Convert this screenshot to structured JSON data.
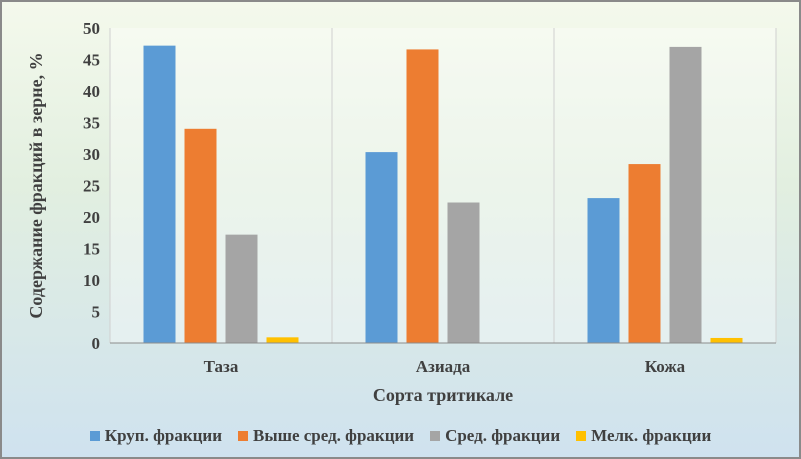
{
  "chart_data": {
    "type": "bar",
    "title": "",
    "xlabel": "Сорта тритикале",
    "ylabel": "Содержание фракций в зерне, %",
    "ylim": [
      0,
      50
    ],
    "yticks": [
      0,
      5,
      10,
      15,
      20,
      25,
      30,
      35,
      40,
      45,
      50
    ],
    "categories": [
      "Таза",
      "Азиада",
      "Кожа"
    ],
    "series": [
      {
        "name": "Круп. фракции",
        "color": "#5b9bd5",
        "values": [
          47.2,
          30.3,
          23.0
        ]
      },
      {
        "name": "Выше сред. фракции",
        "color": "#ed7d31",
        "values": [
          34.0,
          46.6,
          28.4
        ]
      },
      {
        "name": "Сред. фракции",
        "color": "#a5a5a5",
        "values": [
          17.2,
          22.3,
          47.0
        ]
      },
      {
        "name": "Мелк. фракции",
        "color": "#ffc000",
        "values": [
          0.9,
          0.0,
          0.8
        ]
      }
    ],
    "grid": "vertical category separators",
    "legend": "bottom"
  }
}
